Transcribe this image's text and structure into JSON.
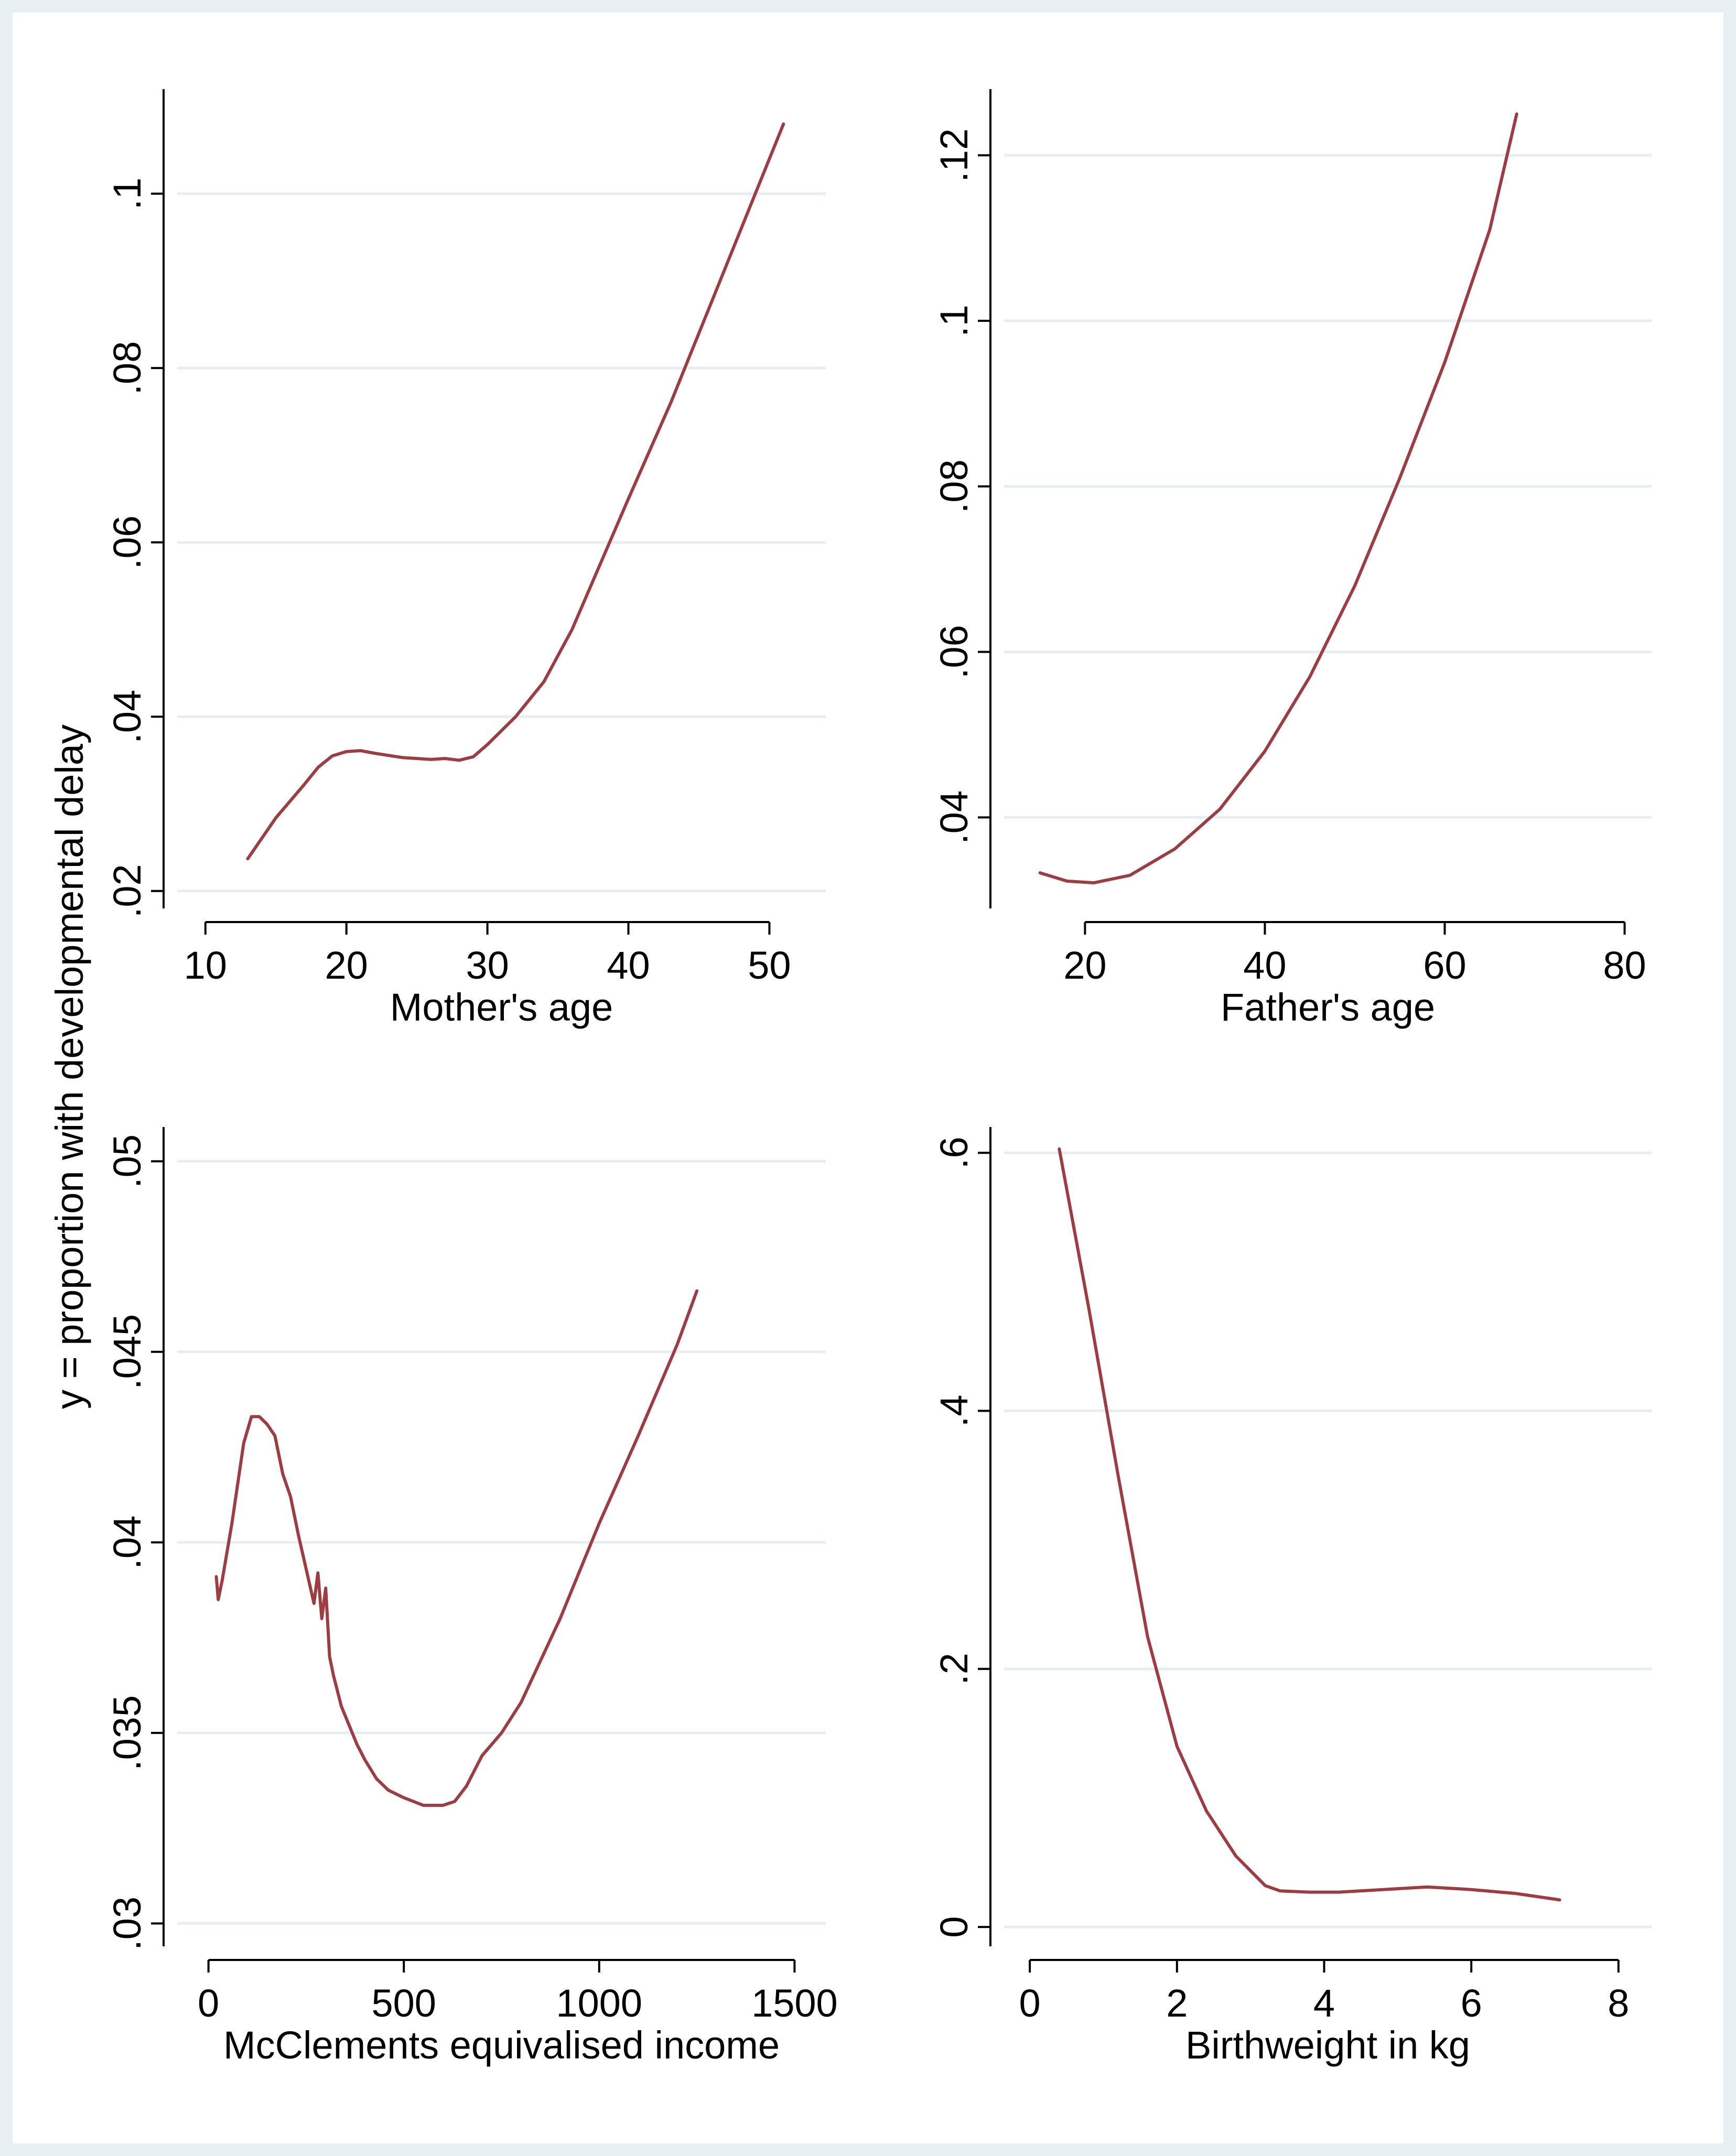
{
  "figure": {
    "shared_ylabel": "y = proportion with developmental delay",
    "line_color": "#9b3d42"
  },
  "chart_data": [
    {
      "type": "line",
      "panel": "top-left",
      "xlabel": "Mother's age",
      "ylabel": "y = proportion with developmental delay",
      "xlim": [
        8,
        54
      ],
      "ylim": [
        0.018,
        0.112
      ],
      "xticks": [
        10,
        20,
        30,
        40,
        50
      ],
      "xtick_labels": [
        "10",
        "20",
        "30",
        "40",
        "50"
      ],
      "yticks": [
        0.02,
        0.04,
        0.06,
        0.08,
        0.1
      ],
      "ytick_labels": [
        ".02",
        ".04",
        ".06",
        ".08",
        ".1"
      ],
      "series": [
        {
          "name": "Mother's age",
          "x": [
            13,
            15,
            17,
            18,
            19,
            20,
            21,
            22,
            24,
            26,
            27,
            28,
            29,
            30,
            32,
            34,
            36,
            38,
            40,
            43,
            46,
            49,
            51
          ],
          "y": [
            0.0237,
            0.0284,
            0.0322,
            0.0342,
            0.0355,
            0.036,
            0.0361,
            0.0358,
            0.0353,
            0.0351,
            0.0352,
            0.035,
            0.0354,
            0.0368,
            0.04,
            0.044,
            0.05,
            0.0575,
            0.065,
            0.076,
            0.088,
            0.1,
            0.108
          ]
        }
      ]
    },
    {
      "type": "line",
      "panel": "top-right",
      "xlabel": "Father's age",
      "ylabel": "",
      "xlim": [
        11,
        83
      ],
      "ylim": [
        0.029,
        0.128
      ],
      "xticks": [
        20,
        40,
        60,
        80
      ],
      "xtick_labels": [
        "20",
        "40",
        "60",
        "80"
      ],
      "yticks": [
        0.04,
        0.06,
        0.08,
        0.1,
        0.12
      ],
      "ytick_labels": [
        ".04",
        ".06",
        ".08",
        ".1",
        ".12"
      ],
      "series": [
        {
          "name": "Father's age",
          "x": [
            15,
            18,
            21,
            25,
            30,
            35,
            40,
            45,
            50,
            55,
            60,
            65,
            68
          ],
          "y": [
            0.0333,
            0.0323,
            0.0321,
            0.033,
            0.0362,
            0.041,
            0.048,
            0.057,
            0.068,
            0.081,
            0.095,
            0.111,
            0.125
          ]
        }
      ]
    },
    {
      "type": "line",
      "panel": "bottom-left",
      "xlabel": "McClements equivalised income",
      "ylabel": "y = proportion with developmental delay",
      "xlim": [
        -80,
        1580
      ],
      "ylim": [
        0.0294,
        0.0509
      ],
      "xticks": [
        0,
        500,
        1000,
        1500
      ],
      "xtick_labels": [
        "0",
        "500",
        "1000",
        "1500"
      ],
      "yticks": [
        0.03,
        0.035,
        0.04,
        0.045,
        0.05
      ],
      "ytick_labels": [
        ".03",
        ".035",
        ".04",
        ".045",
        ".05"
      ],
      "series": [
        {
          "name": "McClements equivalised income",
          "x": [
            20,
            25,
            35,
            60,
            90,
            110,
            130,
            150,
            170,
            190,
            210,
            230,
            250,
            270,
            280,
            290,
            300,
            310,
            320,
            340,
            360,
            380,
            400,
            430,
            460,
            500,
            550,
            600,
            630,
            660,
            700,
            750,
            800,
            900,
            1000,
            1100,
            1200,
            1250
          ],
          "y": [
            0.0391,
            0.0385,
            0.039,
            0.0405,
            0.0426,
            0.0433,
            0.0433,
            0.0431,
            0.0428,
            0.0418,
            0.0412,
            0.0402,
            0.0393,
            0.0384,
            0.0392,
            0.038,
            0.0388,
            0.037,
            0.0365,
            0.0357,
            0.0352,
            0.0347,
            0.0343,
            0.0338,
            0.0335,
            0.0333,
            0.0331,
            0.0331,
            0.0332,
            0.0336,
            0.0344,
            0.035,
            0.0358,
            0.038,
            0.0405,
            0.0428,
            0.0452,
            0.0466
          ]
        }
      ]
    },
    {
      "type": "line",
      "panel": "bottom-right",
      "xlabel": "Birthweight in kg",
      "ylabel": "",
      "xlim": [
        -0.35,
        8.45
      ],
      "ylim": [
        -0.015,
        0.62
      ],
      "xticks": [
        0,
        2,
        4,
        6,
        8
      ],
      "xtick_labels": [
        "0",
        "2",
        "4",
        "6",
        "8"
      ],
      "yticks": [
        0,
        0.2,
        0.4,
        0.6
      ],
      "ytick_labels": [
        "0",
        ".2",
        ".4",
        ".6"
      ],
      "series": [
        {
          "name": "Birthweight in kg",
          "x": [
            0.4,
            0.8,
            1.2,
            1.6,
            2.0,
            2.4,
            2.8,
            3.2,
            3.4,
            3.8,
            4.2,
            4.8,
            5.4,
            6.0,
            6.6,
            7.2
          ],
          "y": [
            0.603,
            0.48,
            0.35,
            0.225,
            0.14,
            0.09,
            0.055,
            0.032,
            0.028,
            0.027,
            0.027,
            0.029,
            0.031,
            0.029,
            0.026,
            0.021
          ]
        }
      ]
    }
  ]
}
